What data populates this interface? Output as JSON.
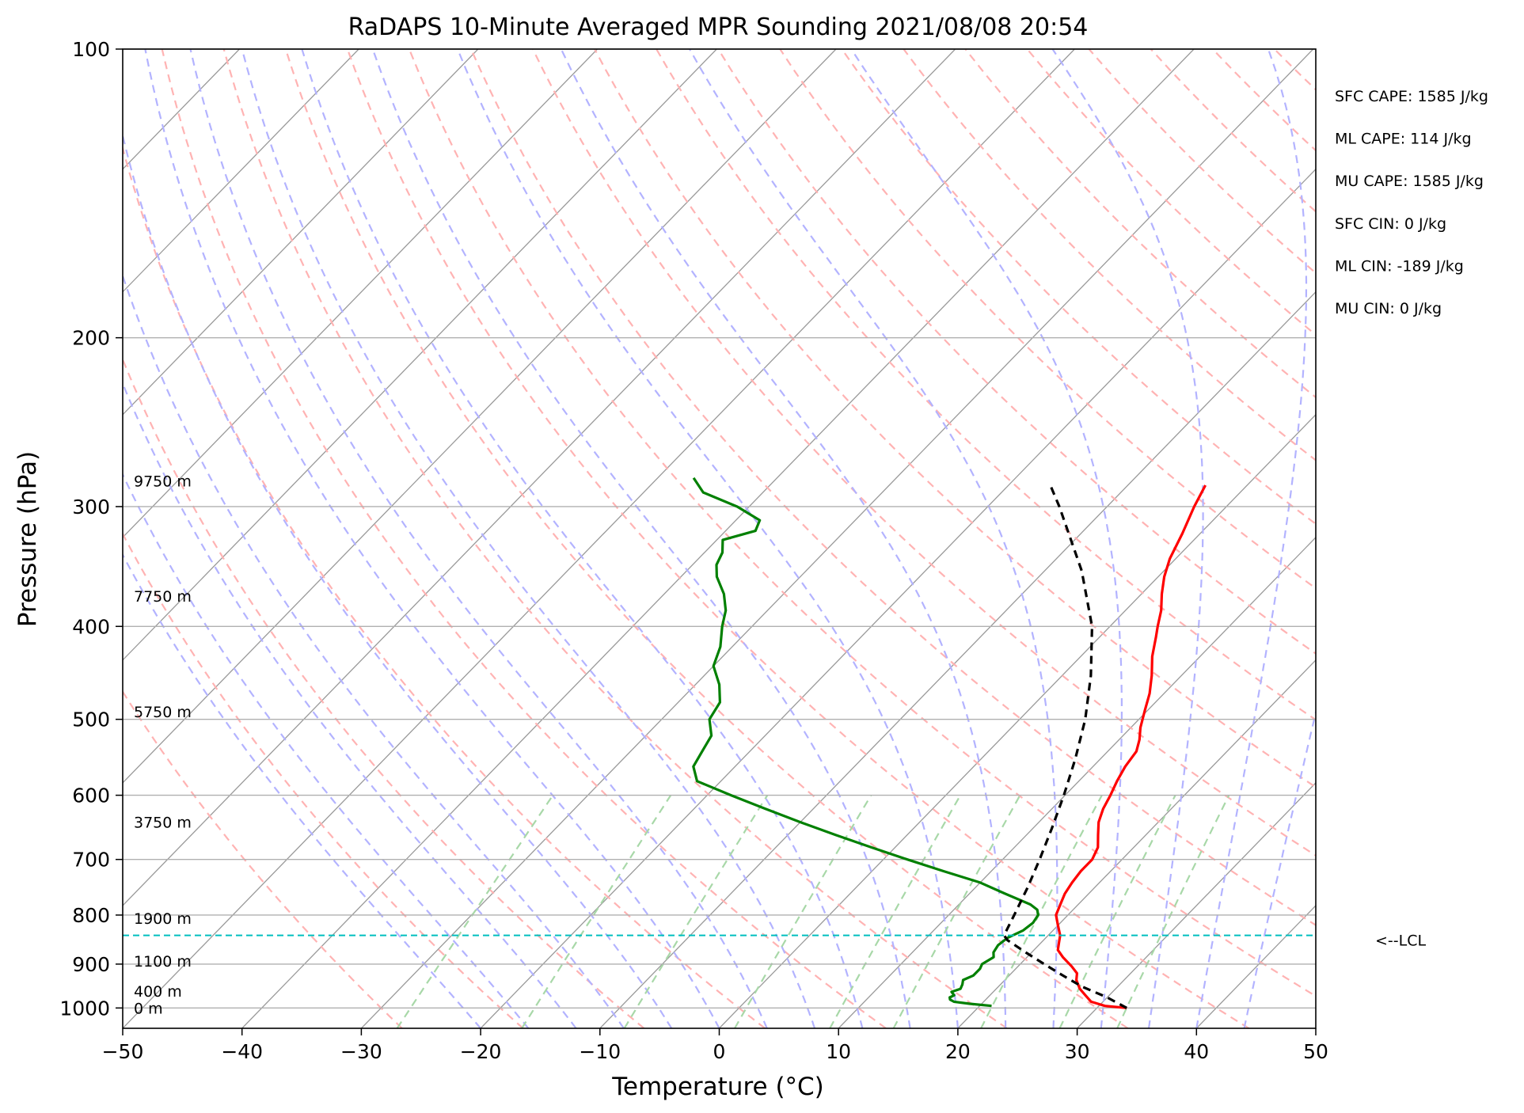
{
  "chart_data": {
    "type": "skew-t",
    "title": "RaDAPS 10-Minute Averaged MPR Sounding 2021/08/08 20:54",
    "xlabel": "Temperature (°C)",
    "ylabel": "Pressure (hPa)",
    "xlim": [
      -50,
      50
    ],
    "ylim": [
      1050,
      100
    ],
    "y_scale": "log",
    "x_ticks": [
      -50,
      -40,
      -30,
      -20,
      -10,
      0,
      10,
      20,
      30,
      40,
      50
    ],
    "x_tick_labels": [
      "−50",
      "−40",
      "−30",
      "−20",
      "−10",
      "0",
      "10",
      "20",
      "30",
      "40",
      "50"
    ],
    "y_ticks": [
      100,
      200,
      300,
      400,
      500,
      600,
      700,
      800,
      900,
      1000
    ],
    "y_tick_labels": [
      "100",
      "200",
      "300",
      "400",
      "500",
      "600",
      "700",
      "800",
      "900",
      "1000"
    ],
    "grid": true,
    "series": [
      {
        "kind": "temperature",
        "color": "#ff0000",
        "points": [
          [
            1000,
            32.5
          ],
          [
            995,
            30.5
          ],
          [
            985,
            29.0
          ],
          [
            970,
            28.0
          ],
          [
            955,
            27.0
          ],
          [
            935,
            26.0
          ],
          [
            920,
            25.5
          ],
          [
            905,
            24.5
          ],
          [
            885,
            23.0
          ],
          [
            870,
            22.0
          ],
          [
            855,
            21.5
          ],
          [
            840,
            21.0
          ],
          [
            820,
            20.0
          ],
          [
            800,
            19.0
          ],
          [
            780,
            18.5
          ],
          [
            760,
            18.0
          ],
          [
            740,
            17.7
          ],
          [
            720,
            17.5
          ],
          [
            700,
            17.5
          ],
          [
            680,
            17.0
          ],
          [
            660,
            16.0
          ],
          [
            640,
            15.0
          ],
          [
            620,
            14.3
          ],
          [
            600,
            13.8
          ],
          [
            580,
            13.2
          ],
          [
            560,
            12.7
          ],
          [
            540,
            12.4
          ],
          [
            525,
            11.7
          ],
          [
            510,
            10.8
          ],
          [
            490,
            9.8
          ],
          [
            470,
            8.8
          ],
          [
            450,
            7.5
          ],
          [
            430,
            6.0
          ],
          [
            410,
            4.7
          ],
          [
            400,
            4.0
          ],
          [
            385,
            3.0
          ],
          [
            370,
            1.7
          ],
          [
            355,
            0.5
          ],
          [
            340,
            -0.5
          ],
          [
            320,
            -1.5
          ],
          [
            300,
            -2.7
          ],
          [
            285,
            -3.5
          ]
        ]
      },
      {
        "kind": "dewpoint",
        "color": "#008000",
        "points": [
          [
            995,
            21.0
          ],
          [
            990,
            19.0
          ],
          [
            985,
            17.5
          ],
          [
            980,
            17.0
          ],
          [
            975,
            16.8
          ],
          [
            970,
            17.0
          ],
          [
            962,
            16.5
          ],
          [
            955,
            17.0
          ],
          [
            945,
            16.8
          ],
          [
            935,
            16.5
          ],
          [
            925,
            17.0
          ],
          [
            910,
            17.0
          ],
          [
            900,
            16.8
          ],
          [
            885,
            17.2
          ],
          [
            875,
            16.8
          ],
          [
            860,
            16.6
          ],
          [
            845,
            16.8
          ],
          [
            830,
            17.5
          ],
          [
            815,
            17.7
          ],
          [
            800,
            17.5
          ],
          [
            790,
            17.0
          ],
          [
            780,
            16.0
          ],
          [
            760,
            13.0
          ],
          [
            740,
            10.0
          ],
          [
            720,
            6.0
          ],
          [
            700,
            2.0
          ],
          [
            680,
            -2.0
          ],
          [
            660,
            -6.0
          ],
          [
            640,
            -10.0
          ],
          [
            620,
            -14.0
          ],
          [
            600,
            -18.0
          ],
          [
            580,
            -22.0
          ],
          [
            560,
            -23.5
          ],
          [
            540,
            -24.0
          ],
          [
            520,
            -24.5
          ],
          [
            500,
            -26.0
          ],
          [
            480,
            -26.5
          ],
          [
            460,
            -28.0
          ],
          [
            440,
            -30.0
          ],
          [
            420,
            -31.0
          ],
          [
            400,
            -32.5
          ],
          [
            385,
            -33.5
          ],
          [
            370,
            -35.0
          ],
          [
            355,
            -37.0
          ],
          [
            345,
            -38.0
          ],
          [
            335,
            -38.5
          ],
          [
            325,
            -39.5
          ],
          [
            318,
            -37.5
          ],
          [
            310,
            -38.0
          ],
          [
            300,
            -41.0
          ],
          [
            290,
            -45.0
          ],
          [
            280,
            -47.0
          ]
        ]
      },
      {
        "kind": "parcel",
        "color": "#000000",
        "dashed": true,
        "points": [
          [
            1000,
            32.5
          ],
          [
            975,
            30.0
          ],
          [
            950,
            27.0
          ],
          [
            925,
            24.5
          ],
          [
            900,
            22.0
          ],
          [
            875,
            19.5
          ],
          [
            850,
            17.0
          ],
          [
            840,
            16.3
          ],
          [
            800,
            15.5
          ],
          [
            750,
            14.4
          ],
          [
            700,
            13.1
          ],
          [
            650,
            11.6
          ],
          [
            600,
            9.9
          ],
          [
            550,
            7.9
          ],
          [
            500,
            5.5
          ],
          [
            450,
            2.4
          ],
          [
            400,
            -1.5
          ],
          [
            350,
            -6.9
          ],
          [
            300,
            -14.0
          ],
          [
            285,
            -16.5
          ]
        ]
      },
      {
        "kind": "lcl",
        "color": "#00bfbf",
        "dashed": true,
        "pressure": 840,
        "label": "<--LCL"
      }
    ],
    "height_labels": [
      {
        "text": "9750 m",
        "pressure": 282
      },
      {
        "text": "7750 m",
        "pressure": 372
      },
      {
        "text": "5750 m",
        "pressure": 491
      },
      {
        "text": "3750 m",
        "pressure": 640
      },
      {
        "text": "1900 m",
        "pressure": 806
      },
      {
        "text": "1100 m",
        "pressure": 893
      },
      {
        "text": "400 m",
        "pressure": 960
      },
      {
        "text": "0 m",
        "pressure": 1000
      }
    ],
    "annotations": [
      "SFC CAPE: 1585 J/kg",
      "ML CAPE: 114 J/kg",
      "MU CAPE: 1585 J/kg",
      "SFC CIN: 0 J/kg",
      "ML CIN: -189 J/kg",
      "MU CIN: 0 J/kg"
    ],
    "background_lines": {
      "isotherm_color": "#999999",
      "dry_adiabat_color": "#ffb3b3",
      "moist_adiabat_color": "#b3b3ff",
      "mixing_ratio_color": "#a8d8a8"
    }
  }
}
